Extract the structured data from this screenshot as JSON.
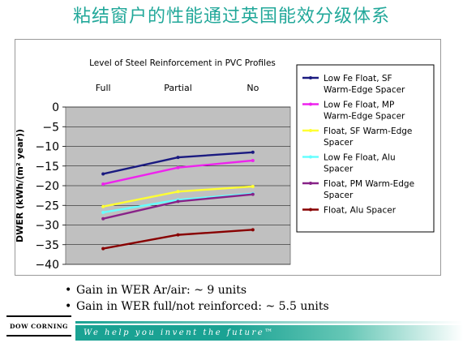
{
  "page": {
    "title": "粘结窗户的性能通过英国能效分级体系",
    "bullets": [
      "Gain in WER Ar/air:  ~ 9 units",
      "Gain in WER full/not reinforced:  ~ 5.5 units"
    ],
    "logo_text": "DOW CORNING",
    "footer_tagline": "We help you invent the future™"
  },
  "chart_data": {
    "type": "line",
    "title": "Level of Steel Reinforcement in PVC Profiles",
    "categories": [
      "Full",
      "Partial",
      "No"
    ],
    "ylabel": "DWER (kWh/(m² year))",
    "ylim": [
      -40,
      0
    ],
    "yticks": [
      0,
      -5,
      -10,
      -15,
      -20,
      -25,
      -30,
      -35,
      -40
    ],
    "plot_background": "#c0c0c0",
    "grid": true,
    "legend_position": "right",
    "series": [
      {
        "name": "Low Fe Float, SF Warm-Edge Spacer",
        "color": "#1a1a80",
        "values": [
          -17,
          -12.8,
          -11.5
        ]
      },
      {
        "name": "Low Fe Float, MP Warm-Edge Spacer",
        "color": "#ee22ee",
        "values": [
          -19.6,
          -15.4,
          -13.6
        ]
      },
      {
        "name": "Float, SF Warm-Edge Spacer",
        "color": "#ffff33",
        "values": [
          -25.3,
          -21.5,
          -20.2
        ]
      },
      {
        "name": "Low Fe Float, Alu Spacer",
        "color": "#66ffff",
        "values": [
          -26.8,
          -23.6,
          -22
        ]
      },
      {
        "name": "Float, PM Warm-Edge Spacer",
        "color": "#882288",
        "values": [
          -28.4,
          -24,
          -22.2
        ]
      },
      {
        "name": "Float, Alu Spacer",
        "color": "#880000",
        "values": [
          -36,
          -32.5,
          -31.2
        ]
      }
    ]
  }
}
